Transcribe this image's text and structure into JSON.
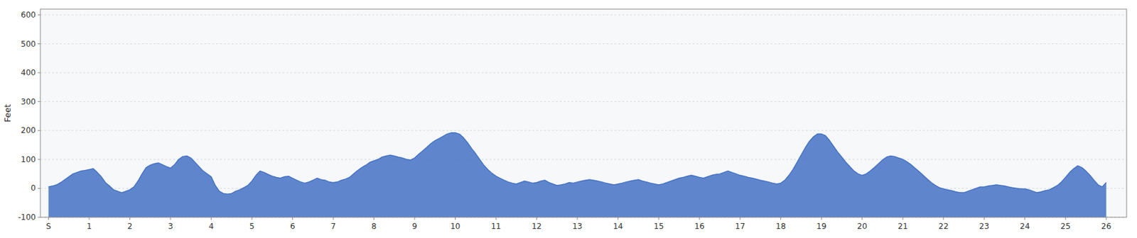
{
  "chart_data": {
    "type": "area",
    "y_label": "Feet",
    "color": "#4472c4",
    "grid": true,
    "xlim": [
      -0.2,
      26.5
    ],
    "xticks": [
      {
        "value": 0,
        "label": "S"
      },
      1,
      2,
      3,
      4,
      5,
      6,
      7,
      8,
      9,
      10,
      11,
      12,
      13,
      14,
      15,
      16,
      17,
      18,
      19,
      20,
      21,
      22,
      23,
      24,
      25,
      26
    ],
    "ylim": [
      -100,
      620
    ],
    "yticks": [
      -100,
      0,
      100,
      200,
      300,
      400,
      500,
      600
    ],
    "x": [
      0.0,
      0.1,
      0.2,
      0.3,
      0.4,
      0.5,
      0.6,
      0.7,
      0.8,
      0.9,
      1.0,
      1.1,
      1.2,
      1.3,
      1.4,
      1.5,
      1.6,
      1.7,
      1.8,
      1.9,
      2.0,
      2.1,
      2.2,
      2.3,
      2.4,
      2.5,
      2.6,
      2.7,
      2.8,
      2.9,
      3.0,
      3.1,
      3.2,
      3.3,
      3.4,
      3.5,
      3.6,
      3.7,
      3.8,
      3.9,
      4.0,
      4.1,
      4.2,
      4.3,
      4.4,
      4.5,
      4.6,
      4.7,
      4.8,
      4.9,
      5.0,
      5.1,
      5.2,
      5.3,
      5.4,
      5.5,
      5.6,
      5.7,
      5.8,
      5.9,
      6.0,
      6.1,
      6.2,
      6.3,
      6.4,
      6.5,
      6.6,
      6.7,
      6.8,
      6.9,
      7.0,
      7.1,
      7.2,
      7.3,
      7.4,
      7.5,
      7.6,
      7.7,
      7.8,
      7.9,
      8.0,
      8.1,
      8.2,
      8.3,
      8.4,
      8.5,
      8.6,
      8.7,
      8.8,
      8.9,
      9.0,
      9.1,
      9.2,
      9.3,
      9.4,
      9.5,
      9.6,
      9.7,
      9.8,
      9.9,
      10.0,
      10.1,
      10.2,
      10.3,
      10.4,
      10.5,
      10.6,
      10.7,
      10.8,
      10.9,
      11.0,
      11.1,
      11.2,
      11.3,
      11.4,
      11.5,
      11.6,
      11.7,
      11.8,
      11.9,
      12.0,
      12.1,
      12.2,
      12.3,
      12.4,
      12.5,
      12.6,
      12.7,
      12.8,
      12.9,
      13.0,
      13.1,
      13.2,
      13.3,
      13.4,
      13.5,
      13.6,
      13.7,
      13.8,
      13.9,
      14.0,
      14.1,
      14.2,
      14.3,
      14.4,
      14.5,
      14.6,
      14.7,
      14.8,
      14.9,
      15.0,
      15.1,
      15.2,
      15.3,
      15.4,
      15.5,
      15.6,
      15.7,
      15.8,
      15.9,
      16.0,
      16.1,
      16.2,
      16.3,
      16.4,
      16.5,
      16.6,
      16.7,
      16.8,
      16.9,
      17.0,
      17.1,
      17.2,
      17.3,
      17.4,
      17.5,
      17.6,
      17.7,
      17.8,
      17.9,
      18.0,
      18.1,
      18.2,
      18.3,
      18.4,
      18.5,
      18.6,
      18.7,
      18.8,
      18.9,
      19.0,
      19.1,
      19.2,
      19.3,
      19.4,
      19.5,
      19.6,
      19.7,
      19.8,
      19.9,
      20.0,
      20.1,
      20.2,
      20.3,
      20.4,
      20.5,
      20.6,
      20.7,
      20.8,
      20.9,
      21.0,
      21.1,
      21.2,
      21.3,
      21.4,
      21.5,
      21.6,
      21.7,
      21.8,
      21.9,
      22.0,
      22.1,
      22.2,
      22.3,
      22.4,
      22.5,
      22.6,
      22.7,
      22.8,
      22.9,
      23.0,
      23.1,
      23.2,
      23.3,
      23.4,
      23.5,
      23.6,
      23.7,
      23.8,
      23.9,
      24.0,
      24.1,
      24.2,
      24.3,
      24.4,
      24.5,
      24.6,
      24.7,
      24.8,
      24.9,
      25.0,
      25.1,
      25.2,
      25.3,
      25.4,
      25.5,
      25.6,
      25.7,
      25.8,
      25.9,
      26.0
    ],
    "values": [
      5,
      8,
      12,
      20,
      30,
      40,
      50,
      55,
      60,
      62,
      65,
      68,
      55,
      40,
      20,
      8,
      -5,
      -10,
      -15,
      -10,
      -5,
      5,
      25,
      50,
      72,
      80,
      85,
      88,
      82,
      75,
      70,
      82,
      100,
      110,
      112,
      105,
      90,
      75,
      60,
      50,
      40,
      10,
      -10,
      -18,
      -20,
      -18,
      -10,
      -5,
      2,
      10,
      25,
      45,
      60,
      55,
      48,
      42,
      38,
      35,
      40,
      42,
      35,
      28,
      22,
      18,
      22,
      28,
      35,
      30,
      28,
      22,
      20,
      22,
      28,
      32,
      38,
      50,
      62,
      72,
      80,
      90,
      95,
      100,
      108,
      112,
      115,
      112,
      108,
      105,
      100,
      98,
      105,
      118,
      130,
      142,
      155,
      165,
      172,
      180,
      188,
      192,
      192,
      188,
      175,
      158,
      138,
      120,
      100,
      80,
      65,
      52,
      42,
      35,
      28,
      22,
      18,
      15,
      20,
      25,
      22,
      18,
      20,
      25,
      28,
      20,
      15,
      10,
      12,
      15,
      20,
      18,
      22,
      25,
      28,
      30,
      28,
      25,
      22,
      18,
      15,
      12,
      15,
      18,
      22,
      25,
      28,
      30,
      25,
      22,
      18,
      15,
      12,
      15,
      20,
      25,
      30,
      35,
      38,
      42,
      45,
      42,
      38,
      35,
      40,
      45,
      48,
      50,
      55,
      60,
      55,
      50,
      45,
      42,
      38,
      35,
      32,
      28,
      25,
      22,
      18,
      15,
      18,
      28,
      45,
      65,
      90,
      115,
      140,
      162,
      178,
      188,
      188,
      182,
      165,
      145,
      125,
      108,
      90,
      75,
      60,
      50,
      45,
      50,
      60,
      72,
      85,
      98,
      108,
      112,
      110,
      105,
      100,
      92,
      82,
      70,
      58,
      45,
      32,
      20,
      10,
      2,
      -2,
      -5,
      -8,
      -12,
      -15,
      -15,
      -10,
      -5,
      0,
      5,
      5,
      8,
      10,
      12,
      10,
      8,
      5,
      2,
      0,
      -2,
      -2,
      -5,
      -10,
      -15,
      -12,
      -8,
      -5,
      2,
      10,
      22,
      38,
      55,
      68,
      78,
      72,
      60,
      45,
      28,
      12,
      5,
      20
    ]
  }
}
